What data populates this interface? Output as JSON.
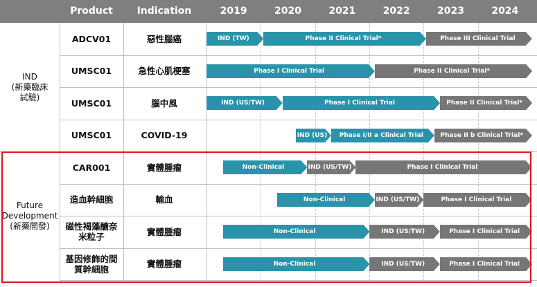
{
  "header": {
    "product": "Product",
    "indication": "Indication",
    "years": [
      "2019",
      "2020",
      "2021",
      "2022",
      "2023",
      "2024"
    ]
  },
  "groups": [
    {
      "label": "IND\n(新藥臨床\n試驗)",
      "rows": [
        0,
        1,
        2,
        3
      ]
    },
    {
      "label": "Future\nDevelopment\n(新藥開發)",
      "rows": [
        4,
        5,
        6,
        7
      ]
    }
  ],
  "colors": {
    "phase_current": "#2a93aa",
    "phase_future": "#767676",
    "highlight_box": "#e0141e",
    "header": "#7f7f7f"
  },
  "chart_data": {
    "type": "gantt",
    "x_axis": {
      "labels": [
        "2019",
        "2020",
        "2021",
        "2022",
        "2023",
        "2024"
      ],
      "range": [
        2019.0,
        2025.0
      ]
    },
    "rows": [
      {
        "product": "ADCV01",
        "indication": "惡性腦癌",
        "bars": [
          {
            "label": "IND (TW)",
            "start": 2019.0,
            "end": 2020.05,
            "status": "current"
          },
          {
            "label": "Phase II Clinical Trial*",
            "start": 2020.05,
            "end": 2023.05,
            "status": "current"
          },
          {
            "label": "Phase III Clinical Trial",
            "start": 2023.05,
            "end": 2025.0,
            "status": "future"
          }
        ]
      },
      {
        "product": "UMSC01",
        "indication": "急性心肌梗塞",
        "bars": [
          {
            "label": "Phase I Clinical Trial",
            "start": 2019.0,
            "end": 2022.1,
            "status": "current"
          },
          {
            "label": "Phase II Clinical Trial*",
            "start": 2022.1,
            "end": 2025.0,
            "status": "future"
          }
        ]
      },
      {
        "product": "UMSC01",
        "indication": "腦中風",
        "bars": [
          {
            "label": "IND (US/TW)",
            "start": 2019.0,
            "end": 2020.4,
            "status": "current"
          },
          {
            "label": "Phase I Clinical Trial",
            "start": 2020.4,
            "end": 2023.3,
            "status": "current"
          },
          {
            "label": "Phase II Clinical Trial*",
            "start": 2023.3,
            "end": 2025.0,
            "status": "future"
          }
        ]
      },
      {
        "product": "UMSC01",
        "indication": "COVID-19",
        "bars": [
          {
            "label": "IND (US)",
            "start": 2020.65,
            "end": 2021.3,
            "status": "current"
          },
          {
            "label": "Phase I/II a Clinical Trial",
            "start": 2021.3,
            "end": 2023.2,
            "status": "current"
          },
          {
            "label": "Phase II b Clinical Trial*",
            "start": 2023.2,
            "end": 2025.0,
            "status": "future"
          }
        ]
      },
      {
        "product": "CAR001",
        "indication": "實體腫瘤",
        "bars": [
          {
            "label": "Non-Clinical",
            "start": 2019.3,
            "end": 2020.85,
            "status": "current"
          },
          {
            "label": "IND (US/TW)",
            "start": 2020.85,
            "end": 2021.75,
            "status": "future"
          },
          {
            "label": "Phase I Clinical Trial",
            "start": 2021.75,
            "end": 2025.0,
            "status": "future"
          }
        ]
      },
      {
        "product": "造血幹細胞",
        "indication": "輸血",
        "bars": [
          {
            "label": "Non-Clinical",
            "start": 2020.3,
            "end": 2022.1,
            "status": "current"
          },
          {
            "label": "IND (US/TW)",
            "start": 2022.1,
            "end": 2023.0,
            "status": "future"
          },
          {
            "label": "Phase I Clinical Trial",
            "start": 2023.0,
            "end": 2025.0,
            "status": "future"
          }
        ]
      },
      {
        "product": "磁性褐藻醣奈\n米粒子",
        "indication": "實體腫瘤",
        "bars": [
          {
            "label": "Non-Clinical",
            "start": 2019.3,
            "end": 2022.0,
            "status": "current"
          },
          {
            "label": "IND (US/TW)",
            "start": 2022.0,
            "end": 2023.3,
            "status": "future"
          },
          {
            "label": "Phase I Clinical Trial",
            "start": 2023.3,
            "end": 2025.0,
            "status": "future"
          }
        ]
      },
      {
        "product": "基因修飾的間\n質幹細胞",
        "indication": "實體腫瘤",
        "bars": [
          {
            "label": "Non-Clinical",
            "start": 2019.3,
            "end": 2022.0,
            "status": "current"
          },
          {
            "label": "IND (US/TW)",
            "start": 2022.0,
            "end": 2023.3,
            "status": "future"
          },
          {
            "label": "Phase I Clinical Trial",
            "start": 2023.3,
            "end": 2025.0,
            "status": "future"
          }
        ]
      }
    ]
  }
}
